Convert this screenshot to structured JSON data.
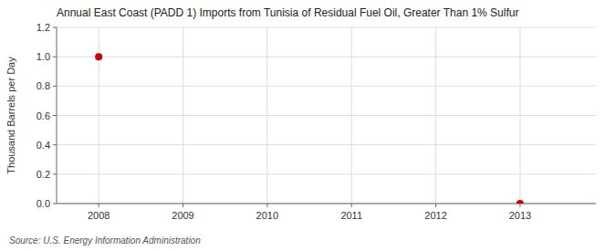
{
  "chart_data": {
    "type": "scatter",
    "title": "Annual East Coast (PADD 1) Imports from Tunisia of Residual Fuel Oil, Greater Than 1% Sulfur",
    "y_label": "Thousand Barrels per Day",
    "source": "Source: U.S. Energy Information Administration",
    "x": [
      2008,
      2013
    ],
    "values": [
      1.0,
      0.0
    ],
    "color": "#cc0000",
    "xlim": [
      2007.5,
      2013.9
    ],
    "ylim": [
      0.0,
      1.2
    ],
    "xticks": [
      2008,
      2009,
      2010,
      2011,
      2012,
      2013
    ],
    "yticks": [
      {
        "value": 0.0,
        "label": "0.0"
      },
      {
        "value": 0.2,
        "label": "0.2"
      },
      {
        "value": 0.4,
        "label": "0.4"
      },
      {
        "value": 0.6,
        "label": "0.6"
      },
      {
        "value": 0.8,
        "label": "0.8"
      },
      {
        "value": 1.0,
        "label": "1.0"
      },
      {
        "value": 1.2,
        "label": "1.2"
      }
    ],
    "grid": true
  }
}
